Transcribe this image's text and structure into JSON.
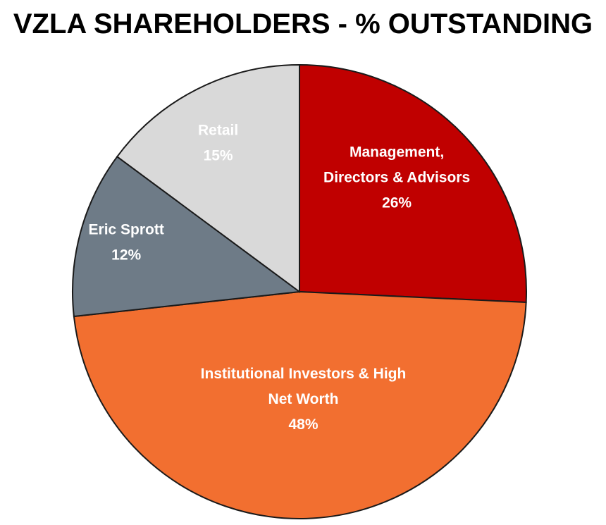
{
  "chart_data": {
    "type": "pie",
    "title": "VZLA SHAREHOLDERS - % OUTSTANDING",
    "slices": [
      {
        "label_lines": [
          "Management,",
          "Directors & Advisors"
        ],
        "percent_label": "26%",
        "value": 26,
        "color": "#c00000",
        "label_color": "#ffffff"
      },
      {
        "label_lines": [
          "Institutional Investors & High",
          "Net Worth"
        ],
        "percent_label": "48%",
        "value": 48,
        "color": "#f26f30",
        "label_color": "#ffffff"
      },
      {
        "label_lines": [
          "Eric Sprott"
        ],
        "percent_label": "12%",
        "value": 12,
        "color": "#6e7b87",
        "label_color": "#ffffff"
      },
      {
        "label_lines": [
          "Retail"
        ],
        "percent_label": "15%",
        "value": 15,
        "color": "#d9d9d9",
        "label_color": "#ffffff"
      }
    ]
  }
}
